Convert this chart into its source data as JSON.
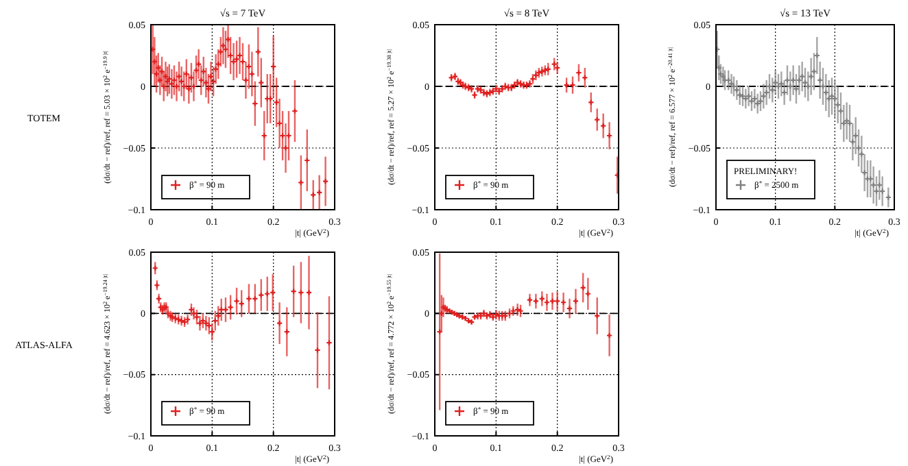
{
  "chart_data": [
    {
      "type": "scatter",
      "title": "√s = 7 TeV",
      "xlabel": "|t|   (GeV$^{2}$)",
      "ylabel": "(dσ/dt − ref)/ref,  ref = 5.03 × 10$^{2}$ e$^{−19.9 |t|}$",
      "annotations": [
        "TOTEM"
      ],
      "xlim": [
        0,
        0.3
      ],
      "ylim": [
        -0.1,
        0.05
      ],
      "xticks": [
        0,
        0.1,
        0.2,
        0.3
      ],
      "yticks": [
        -0.1,
        -0.05,
        0,
        0.05
      ],
      "grid": true,
      "legend": "bottom left",
      "marker": "cross",
      "ref_lines": [
        {
          "axis": "y",
          "value": 0,
          "line_style": "dashed",
          "color": "#000000"
        }
      ],
      "series": [
        {
          "name": "β$^{*}$ = 90 m",
          "color": "#e02020",
          "x": [
            0.003,
            0.006,
            0.009,
            0.012,
            0.015,
            0.018,
            0.021,
            0.024,
            0.027,
            0.03,
            0.034,
            0.038,
            0.042,
            0.046,
            0.05,
            0.054,
            0.058,
            0.062,
            0.066,
            0.07,
            0.074,
            0.078,
            0.082,
            0.086,
            0.09,
            0.094,
            0.098,
            0.102,
            0.106,
            0.11,
            0.114,
            0.118,
            0.122,
            0.126,
            0.13,
            0.135,
            0.14,
            0.145,
            0.15,
            0.155,
            0.16,
            0.165,
            0.17,
            0.175,
            0.18,
            0.185,
            0.19,
            0.195,
            0.2,
            0.205,
            0.21,
            0.215,
            0.22,
            0.225,
            0.235,
            0.245,
            0.255,
            0.265,
            0.275,
            0.285
          ],
          "values": [
            0.03,
            0.02,
            0.01,
            0.015,
            0.005,
            0.012,
            0.0,
            0.008,
            0.004,
            0.006,
            0.002,
            0.005,
            0.0,
            0.008,
            0.004,
            0.0,
            0.01,
            -0.002,
            0.007,
            0.0,
            0.013,
            0.018,
            0.005,
            0.012,
            0.003,
            -0.002,
            0.008,
            0.004,
            0.014,
            0.018,
            0.028,
            0.033,
            0.03,
            0.038,
            0.025,
            0.02,
            0.022,
            0.025,
            0.02,
            0.005,
            0.016,
            0.01,
            -0.014,
            0.028,
            0.003,
            -0.04,
            -0.01,
            -0.01,
            0.016,
            -0.013,
            -0.03,
            -0.04,
            -0.05,
            -0.04,
            -0.02,
            -0.078,
            -0.06,
            -0.088,
            -0.086,
            -0.077
          ],
          "errors": [
            0.02,
            0.02,
            0.015,
            0.012,
            0.012,
            0.012,
            0.012,
            0.012,
            0.012,
            0.012,
            0.012,
            0.012,
            0.012,
            0.012,
            0.012,
            0.012,
            0.012,
            0.012,
            0.012,
            0.012,
            0.012,
            0.012,
            0.012,
            0.012,
            0.012,
            0.012,
            0.012,
            0.012,
            0.012,
            0.012,
            0.012,
            0.015,
            0.015,
            0.015,
            0.015,
            0.015,
            0.015,
            0.015,
            0.015,
            0.015,
            0.018,
            0.018,
            0.018,
            0.02,
            0.02,
            0.02,
            0.02,
            0.02,
            0.025,
            0.02,
            0.02,
            0.02,
            0.02,
            0.02,
            0.025,
            0.022,
            0.025,
            0.012,
            0.014,
            0.02
          ]
        }
      ]
    },
    {
      "type": "scatter",
      "title": "√s = 8 TeV",
      "xlabel": "|t|   (GeV$^{2}$)",
      "ylabel": "(dσ/dt − ref)/ref,  ref = 5.27 × 10$^{2}$ e$^{−19.38 |t|}$",
      "xlim": [
        0,
        0.3
      ],
      "ylim": [
        -0.1,
        0.05
      ],
      "xticks": [
        0,
        0.1,
        0.2,
        0.3
      ],
      "yticks": [
        -0.1,
        -0.05,
        0,
        0.05
      ],
      "grid": true,
      "legend": "bottom left",
      "marker": "cross",
      "ref_lines": [
        {
          "axis": "y",
          "value": 0,
          "line_style": "dashed",
          "color": "#000000"
        }
      ],
      "series": [
        {
          "name": "β$^{*}$ = 90 m",
          "color": "#e02020",
          "x": [
            0.027,
            0.033,
            0.038,
            0.042,
            0.046,
            0.05,
            0.055,
            0.06,
            0.065,
            0.07,
            0.075,
            0.08,
            0.085,
            0.09,
            0.095,
            0.1,
            0.105,
            0.11,
            0.115,
            0.12,
            0.125,
            0.13,
            0.135,
            0.14,
            0.145,
            0.15,
            0.155,
            0.16,
            0.165,
            0.17,
            0.175,
            0.18,
            0.185,
            0.195,
            0.2,
            0.215,
            0.225,
            0.235,
            0.245,
            0.255,
            0.265,
            0.275,
            0.285,
            0.298
          ],
          "values": [
            0.007,
            0.008,
            0.004,
            0.003,
            0.001,
            0.0,
            -0.001,
            -0.002,
            -0.007,
            -0.002,
            -0.003,
            -0.005,
            -0.006,
            -0.005,
            -0.004,
            -0.002,
            -0.004,
            -0.002,
            0.0,
            -0.001,
            -0.001,
            0.001,
            0.003,
            0.002,
            0.001,
            0.001,
            0.002,
            0.006,
            0.009,
            0.011,
            0.012,
            0.013,
            0.014,
            0.018,
            0.015,
            0.001,
            0.001,
            0.011,
            0.007,
            -0.013,
            -0.027,
            -0.032,
            -0.04,
            -0.072
          ],
          "errors": [
            0.003,
            0.003,
            0.003,
            0.003,
            0.003,
            0.003,
            0.003,
            0.003,
            0.003,
            0.003,
            0.003,
            0.003,
            0.003,
            0.003,
            0.003,
            0.003,
            0.003,
            0.003,
            0.003,
            0.003,
            0.003,
            0.003,
            0.003,
            0.003,
            0.003,
            0.003,
            0.003,
            0.004,
            0.004,
            0.004,
            0.004,
            0.004,
            0.005,
            0.005,
            0.005,
            0.006,
            0.007,
            0.007,
            0.008,
            0.008,
            0.009,
            0.01,
            0.011,
            0.015
          ]
        }
      ]
    },
    {
      "type": "scatter",
      "title": "√s = 13 TeV",
      "xlabel": "|t|   (GeV$^{2}$)",
      "ylabel": "(dσ/dt − ref)/ref,  ref = 6.577 × 10$^{2}$ e$^{−20.41 |t|}$",
      "legend_title": "PRELIMINARY!",
      "xlim": [
        0,
        0.3
      ],
      "ylim": [
        -0.1,
        0.05
      ],
      "xticks": [
        0,
        0.1,
        0.2,
        0.3
      ],
      "yticks": [
        -0.1,
        -0.05,
        0,
        0.05
      ],
      "grid": true,
      "legend": "bottom left",
      "marker": "cross",
      "ref_lines": [
        {
          "axis": "y",
          "value": 0,
          "line_style": "dashed",
          "color": "#000000"
        }
      ],
      "series": [
        {
          "name": "β$^{*}$ = 2500 m",
          "color": "#808080",
          "x": [
            0.002,
            0.005,
            0.008,
            0.012,
            0.015,
            0.021,
            0.026,
            0.03,
            0.035,
            0.04,
            0.045,
            0.05,
            0.055,
            0.06,
            0.065,
            0.07,
            0.075,
            0.08,
            0.085,
            0.09,
            0.095,
            0.1,
            0.105,
            0.11,
            0.115,
            0.12,
            0.125,
            0.13,
            0.135,
            0.14,
            0.145,
            0.15,
            0.155,
            0.16,
            0.165,
            0.17,
            0.175,
            0.18,
            0.185,
            0.19,
            0.195,
            0.2,
            0.205,
            0.21,
            0.215,
            0.22,
            0.225,
            0.23,
            0.235,
            0.24,
            0.245,
            0.25,
            0.255,
            0.26,
            0.265,
            0.27,
            0.275,
            0.28,
            0.29
          ],
          "values": [
            0.03,
            0.015,
            0.01,
            0.008,
            0.005,
            0.005,
            0.002,
            0.0,
            -0.003,
            -0.007,
            -0.008,
            -0.01,
            -0.008,
            -0.012,
            -0.01,
            -0.014,
            -0.012,
            -0.008,
            -0.005,
            0.0,
            -0.003,
            0.003,
            0.0,
            0.002,
            -0.005,
            0.005,
            0.0,
            0.005,
            -0.002,
            0.005,
            0.008,
            0.003,
            0.0,
            0.008,
            0.012,
            0.025,
            0.005,
            0.0,
            -0.005,
            -0.01,
            -0.008,
            -0.01,
            -0.015,
            -0.02,
            -0.03,
            -0.028,
            -0.03,
            -0.045,
            -0.04,
            -0.05,
            -0.055,
            -0.07,
            -0.075,
            -0.075,
            -0.08,
            -0.085,
            -0.08,
            -0.085,
            -0.09
          ],
          "errors": [
            0.015,
            0.01,
            0.008,
            0.008,
            0.008,
            0.008,
            0.008,
            0.008,
            0.008,
            0.008,
            0.008,
            0.008,
            0.008,
            0.008,
            0.008,
            0.008,
            0.008,
            0.01,
            0.01,
            0.01,
            0.01,
            0.01,
            0.01,
            0.01,
            0.01,
            0.012,
            0.012,
            0.012,
            0.012,
            0.012,
            0.012,
            0.012,
            0.012,
            0.015,
            0.015,
            0.015,
            0.015,
            0.015,
            0.015,
            0.015,
            0.015,
            0.015,
            0.015,
            0.015,
            0.015,
            0.015,
            0.015,
            0.015,
            0.015,
            0.015,
            0.015,
            0.015,
            0.015,
            0.015,
            0.015,
            0.012,
            0.012,
            0.012,
            0.008
          ]
        }
      ]
    },
    {
      "type": "scatter",
      "xlabel": "|t|   (GeV$^{2}$)",
      "ylabel": "(dσ/dt − ref)/ref,  ref = 4.623 × 10$^{2}$ e$^{−19.24 |t|}$",
      "annotations": [
        "ATLAS-ALFA"
      ],
      "xlim": [
        0,
        0.3
      ],
      "ylim": [
        -0.1,
        0.05
      ],
      "xticks": [
        0,
        0.1,
        0.2,
        0.3
      ],
      "yticks": [
        -0.1,
        -0.05,
        0,
        0.05
      ],
      "grid": true,
      "legend": "bottom left",
      "marker": "cross",
      "ref_lines": [
        {
          "axis": "y",
          "value": 0,
          "line_style": "dashed",
          "color": "#000000"
        }
      ],
      "series": [
        {
          "name": "β$^{*}$ = 90 m",
          "color": "#e02020",
          "x": [
            0.007,
            0.01,
            0.013,
            0.016,
            0.019,
            0.022,
            0.025,
            0.028,
            0.032,
            0.035,
            0.04,
            0.045,
            0.05,
            0.055,
            0.06,
            0.066,
            0.07,
            0.075,
            0.08,
            0.085,
            0.09,
            0.095,
            0.1,
            0.105,
            0.11,
            0.115,
            0.122,
            0.13,
            0.14,
            0.148,
            0.16,
            0.17,
            0.18,
            0.19,
            0.199,
            0.21,
            0.222,
            0.233,
            0.245,
            0.258,
            0.272,
            0.291
          ],
          "values": [
            0.037,
            0.023,
            0.012,
            0.005,
            0.003,
            0.005,
            0.005,
            0.0,
            -0.002,
            -0.003,
            -0.004,
            -0.005,
            -0.006,
            -0.007,
            -0.005,
            0.003,
            0.0,
            -0.003,
            -0.008,
            -0.006,
            -0.008,
            -0.01,
            -0.015,
            -0.006,
            -0.002,
            0.003,
            0.003,
            0.005,
            0.01,
            0.008,
            0.012,
            0.012,
            0.015,
            0.016,
            0.017,
            -0.008,
            -0.015,
            0.018,
            0.017,
            0.017,
            -0.03,
            -0.024
          ],
          "errors": [
            0.005,
            0.004,
            0.004,
            0.004,
            0.004,
            0.004,
            0.004,
            0.004,
            0.004,
            0.004,
            0.004,
            0.004,
            0.004,
            0.004,
            0.004,
            0.005,
            0.005,
            0.006,
            0.006,
            0.006,
            0.006,
            0.007,
            0.007,
            0.008,
            0.008,
            0.009,
            0.01,
            0.01,
            0.011,
            0.011,
            0.012,
            0.012,
            0.013,
            0.014,
            0.015,
            0.017,
            0.02,
            0.021,
            0.025,
            0.03,
            0.031,
            0.038
          ]
        }
      ]
    },
    {
      "type": "scatter",
      "xlabel": "|t|   (GeV$^{2}$)",
      "ylabel": "(dσ/dt − ref)/ref,  ref = 4.772 × 10$^{2}$ e$^{−19.55 |t|}$",
      "xlim": [
        0,
        0.3
      ],
      "ylim": [
        -0.1,
        0.05
      ],
      "xticks": [
        0,
        0.1,
        0.2,
        0.3
      ],
      "yticks": [
        -0.1,
        -0.05,
        0,
        0.05
      ],
      "grid": true,
      "legend": "bottom left",
      "marker": "cross",
      "ref_lines": [
        {
          "axis": "y",
          "value": 0,
          "line_style": "dashed",
          "color": "#000000"
        }
      ],
      "series": [
        {
          "name": "β$^{*}$ = 90 m",
          "color": "#e02020",
          "x": [
            0.008,
            0.011,
            0.014,
            0.017,
            0.02,
            0.024,
            0.028,
            0.032,
            0.036,
            0.04,
            0.045,
            0.05,
            0.055,
            0.06,
            0.065,
            0.07,
            0.075,
            0.08,
            0.085,
            0.09,
            0.095,
            0.1,
            0.105,
            0.11,
            0.115,
            0.122,
            0.128,
            0.135,
            0.14,
            0.155,
            0.165,
            0.175,
            0.183,
            0.192,
            0.2,
            0.21,
            0.22,
            0.23,
            0.242,
            0.25,
            0.265,
            0.285
          ],
          "values": [
            -0.015,
            0.0,
            0.005,
            0.004,
            0.003,
            0.002,
            0.001,
            0.0,
            -0.001,
            -0.002,
            -0.003,
            -0.004,
            -0.006,
            -0.007,
            -0.003,
            -0.002,
            -0.002,
            0.0,
            -0.002,
            -0.001,
            -0.003,
            -0.001,
            -0.002,
            -0.002,
            -0.002,
            0.0,
            0.002,
            0.003,
            0.002,
            0.011,
            0.01,
            0.012,
            0.009,
            0.01,
            0.01,
            0.009,
            0.004,
            0.01,
            0.021,
            0.016,
            -0.002,
            -0.018
          ],
          "errors": [
            0.064,
            0.015,
            0.008,
            0.003,
            0.003,
            0.002,
            0.002,
            0.002,
            0.002,
            0.002,
            0.002,
            0.002,
            0.002,
            0.002,
            0.002,
            0.003,
            0.003,
            0.003,
            0.003,
            0.003,
            0.003,
            0.004,
            0.004,
            0.004,
            0.004,
            0.004,
            0.004,
            0.005,
            0.005,
            0.005,
            0.006,
            0.006,
            0.007,
            0.007,
            0.008,
            0.008,
            0.008,
            0.01,
            0.012,
            0.013,
            0.015,
            0.017
          ]
        }
      ]
    }
  ]
}
